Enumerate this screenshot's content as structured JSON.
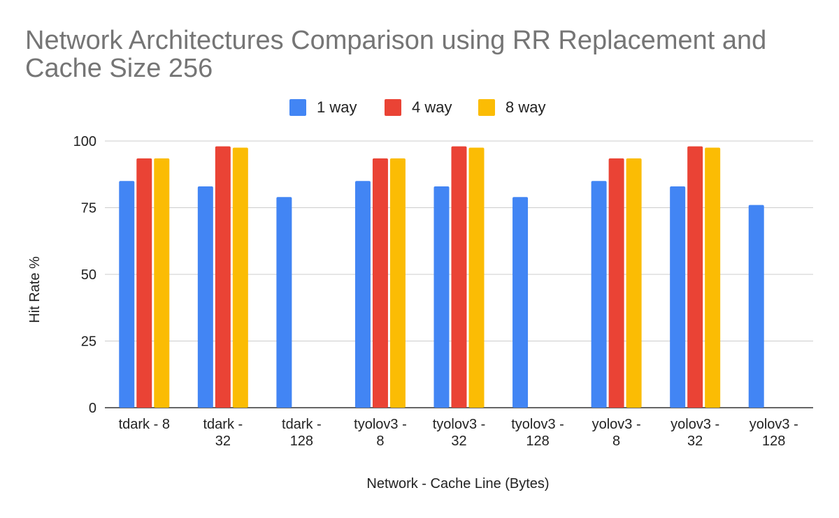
{
  "chart_data": {
    "type": "bar",
    "title_lines": [
      "Network Architectures Comparison using RR Replacement and",
      "Cache Size 256"
    ],
    "xlabel": "Network - Cache Line (Bytes)",
    "ylabel": "Hit Rate %",
    "ylim": [
      0,
      100
    ],
    "yticks": [
      0,
      25,
      50,
      75,
      100
    ],
    "grid": true,
    "legend_position": "top-center",
    "categories": [
      [
        "tdark - 8"
      ],
      [
        "tdark -",
        "32"
      ],
      [
        "tdark -",
        "128"
      ],
      [
        "tyolov3 -",
        "8"
      ],
      [
        "tyolov3 -",
        "32"
      ],
      [
        "tyolov3 -",
        "128"
      ],
      [
        "yolov3 -",
        "8"
      ],
      [
        "yolov3 -",
        "32"
      ],
      [
        "yolov3 -",
        "128"
      ]
    ],
    "series": [
      {
        "name": "1 way",
        "color": "#4285F4",
        "values": [
          85,
          83,
          79,
          85,
          83,
          79,
          85,
          83,
          76
        ]
      },
      {
        "name": "4 way",
        "color": "#EA4335",
        "values": [
          93.5,
          98,
          null,
          93.5,
          98,
          null,
          93.5,
          98,
          null
        ]
      },
      {
        "name": "8 way",
        "color": "#FBBC04",
        "values": [
          93.5,
          97.5,
          null,
          93.5,
          97.5,
          null,
          93.5,
          97.5,
          null
        ]
      }
    ]
  }
}
